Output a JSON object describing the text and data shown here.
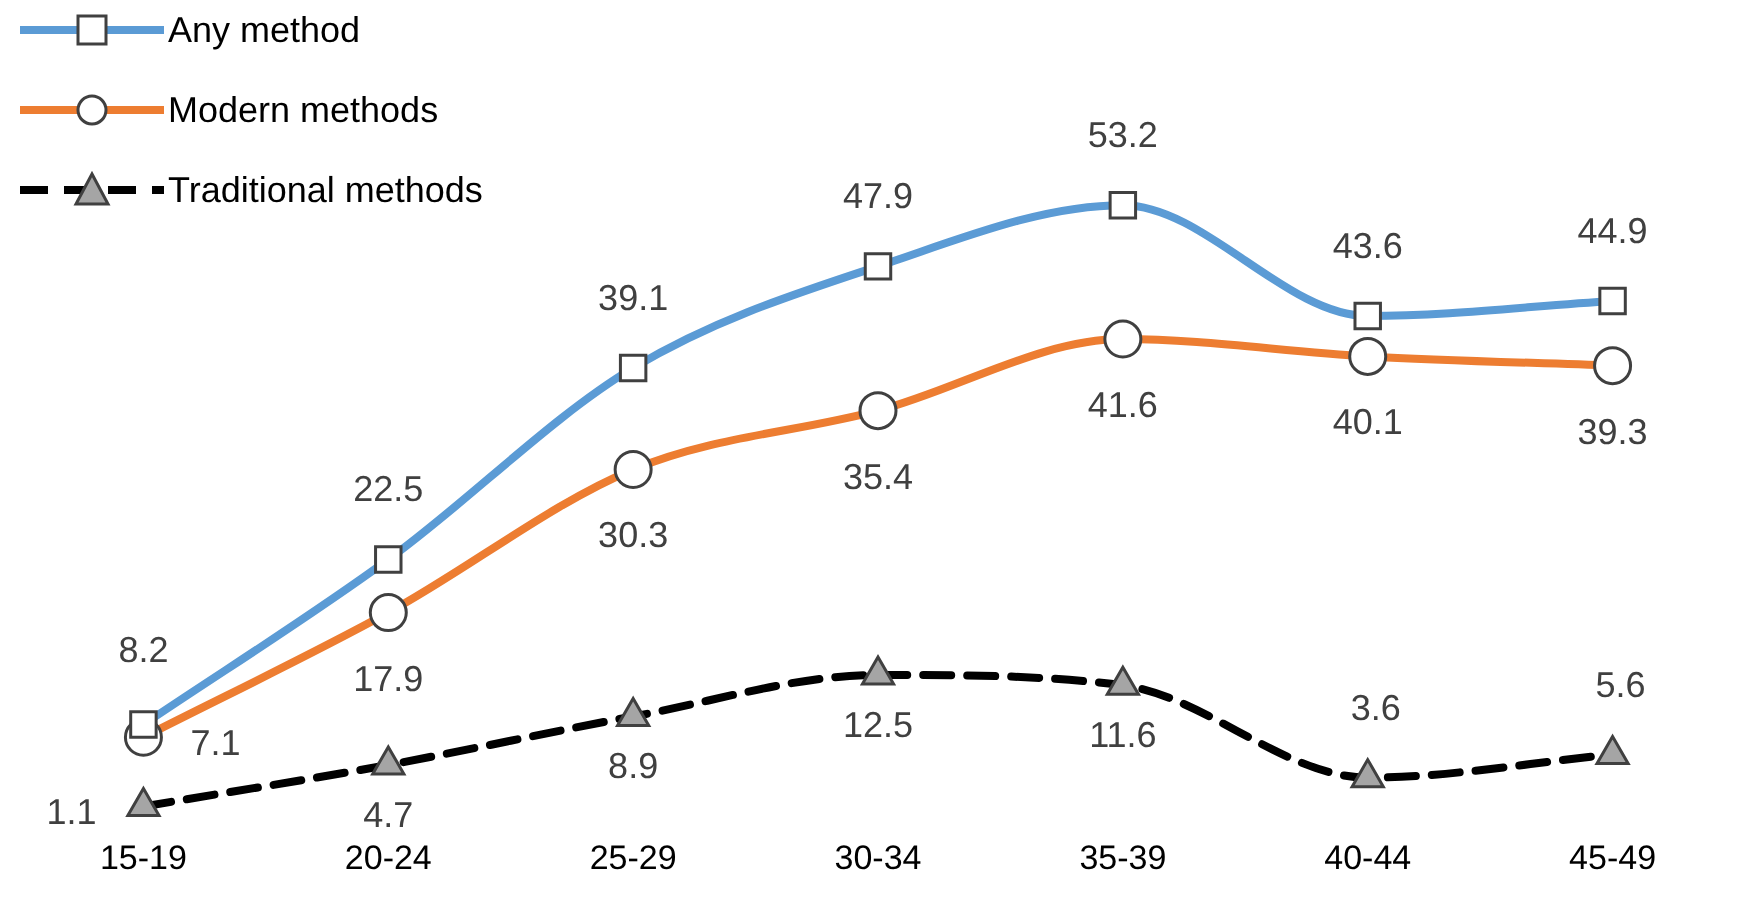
{
  "chart_data": {
    "type": "line",
    "categories": [
      "15-19",
      "20-24",
      "25-29",
      "30-34",
      "35-39",
      "40-44",
      "45-49"
    ],
    "series": [
      {
        "name": "Any method",
        "color": "#5b9bd5",
        "marker": "square",
        "line_style": "solid",
        "values": [
          8.2,
          22.5,
          39.1,
          47.9,
          53.2,
          43.6,
          44.9
        ]
      },
      {
        "name": "Modern methods",
        "color": "#ed7d31",
        "marker": "circle",
        "line_style": "solid",
        "values": [
          7.1,
          17.9,
          30.3,
          35.4,
          41.6,
          40.1,
          39.3
        ]
      },
      {
        "name": "Traditional methods",
        "color": "#000000",
        "marker": "triangle",
        "line_style": "dashed",
        "values": [
          1.1,
          4.7,
          8.9,
          12.5,
          11.6,
          3.6,
          5.6
        ]
      }
    ],
    "data_labels": true,
    "legend": "top left",
    "grid": false
  }
}
